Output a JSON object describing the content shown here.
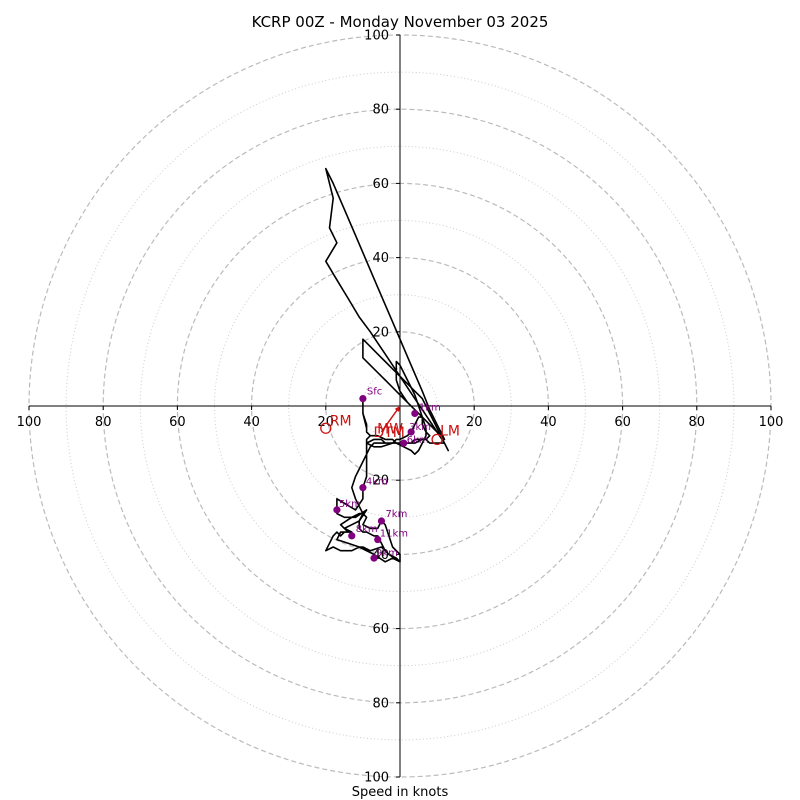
{
  "chart_data": {
    "type": "hodograph",
    "title": "KCRP 00Z - Monday November 03 2025",
    "xlabel": "Speed in knots",
    "max_speed": 100,
    "dashed_rings": [
      20,
      40,
      60,
      80,
      100
    ],
    "dotted_rings": [
      10,
      30,
      50,
      70,
      90
    ],
    "x_tick_labels": [
      "100",
      "80",
      "60",
      "40",
      "20",
      "20",
      "40",
      "60",
      "80",
      "100"
    ],
    "x_tick_values": [
      -100,
      -80,
      -60,
      -40,
      -20,
      20,
      40,
      60,
      80,
      100
    ],
    "y_tick_labels": [
      "100",
      "80",
      "60",
      "40",
      "20",
      "20",
      "40",
      "60",
      "80",
      "100"
    ],
    "y_tick_values": [
      100,
      80,
      60,
      40,
      20,
      -20,
      -40,
      -60,
      -80,
      -100
    ],
    "colors": {
      "hodograph": "#000000",
      "height_markers": "#800080",
      "motion": "#cc1111",
      "dashed_ring": "#bbbbbb",
      "dotted_ring": "#cccccc",
      "axis": "#000000"
    },
    "hodograph_trace": [
      [
        -10,
        2
      ],
      [
        -10,
        -2
      ],
      [
        -9,
        -6
      ],
      [
        -9,
        -7
      ],
      [
        -8,
        -8
      ],
      [
        -9,
        -9
      ],
      [
        -9,
        -10
      ],
      [
        -7,
        -9
      ],
      [
        -5,
        -9
      ],
      [
        -4,
        -10
      ],
      [
        -2,
        -10
      ],
      [
        -1,
        -9
      ],
      [
        0,
        -9
      ],
      [
        2,
        -8
      ],
      [
        3,
        -7
      ],
      [
        4,
        -5
      ],
      [
        5,
        -3
      ],
      [
        6,
        -3
      ],
      [
        6,
        -5
      ],
      [
        7,
        -7
      ],
      [
        8,
        -8
      ],
      [
        7,
        -9
      ],
      [
        6,
        -9
      ],
      [
        4,
        -10
      ],
      [
        3,
        -10
      ],
      [
        1,
        -10
      ],
      [
        -2,
        -10
      ],
      [
        -5,
        -11
      ],
      [
        -7,
        -11
      ],
      [
        -9,
        -10
      ],
      [
        -9,
        -14
      ],
      [
        -9,
        -19
      ],
      [
        -10,
        -22
      ],
      [
        -10,
        -25
      ],
      [
        -12,
        -28
      ],
      [
        -17,
        -25
      ],
      [
        -17,
        -27
      ],
      [
        -17,
        -29
      ],
      [
        -15,
        -30
      ],
      [
        -12,
        -30
      ],
      [
        -9,
        -28
      ],
      [
        -11,
        -31
      ],
      [
        -13,
        -32
      ],
      [
        -15,
        -33
      ],
      [
        -13,
        -34
      ],
      [
        -16,
        -34
      ],
      [
        -17,
        -36
      ],
      [
        -14,
        -37
      ],
      [
        -11,
        -38
      ],
      [
        -7,
        -40
      ],
      [
        -4,
        -42
      ],
      [
        -2,
        -41
      ],
      [
        0,
        -42
      ],
      [
        -3,
        -40
      ],
      [
        -5,
        -38
      ],
      [
        -8,
        -39
      ],
      [
        -10,
        -38
      ],
      [
        -11,
        -38
      ],
      [
        -13,
        -39
      ],
      [
        -14,
        -39
      ],
      [
        -15,
        -39
      ],
      [
        -16,
        -39
      ],
      [
        -18,
        -38
      ],
      [
        -20,
        -39
      ],
      [
        -19,
        -37
      ],
      [
        -18,
        -35
      ],
      [
        -17,
        -34
      ],
      [
        -16,
        -35
      ],
      [
        -15,
        -34
      ],
      [
        -14,
        -34
      ],
      [
        -15,
        -33
      ],
      [
        -16,
        -32
      ],
      [
        -13,
        -30
      ],
      [
        -11,
        -29
      ],
      [
        -10,
        -29
      ],
      [
        -9,
        -30
      ],
      [
        -10,
        -32
      ],
      [
        -8,
        -33
      ],
      [
        -6,
        -33
      ],
      [
        -5,
        -31
      ],
      [
        -4,
        -32
      ],
      [
        -3,
        -35
      ],
      [
        -2,
        -38
      ],
      [
        -1,
        -39
      ],
      [
        0,
        -40
      ],
      [
        0,
        -42
      ],
      [
        -1,
        -41
      ],
      [
        -3,
        -40
      ],
      [
        -4,
        -39
      ],
      [
        -5,
        -37
      ],
      [
        -6,
        -35
      ],
      [
        -7,
        -35
      ],
      [
        -9,
        -34
      ],
      [
        -10,
        -34
      ],
      [
        -11,
        -33
      ],
      [
        -11,
        -31
      ],
      [
        -10,
        -29
      ],
      [
        -11,
        -27
      ],
      [
        -12,
        -25
      ],
      [
        -13,
        -22
      ],
      [
        -12,
        -19
      ],
      [
        -11,
        -17
      ],
      [
        -10,
        -15
      ],
      [
        -9,
        -13
      ],
      [
        -8,
        -11
      ],
      [
        -7,
        -10
      ],
      [
        -5,
        -10
      ],
      [
        -3,
        -10
      ],
      [
        -1,
        -10
      ],
      [
        1,
        -10
      ],
      [
        3,
        -10
      ],
      [
        4,
        -9
      ],
      [
        6,
        -9
      ],
      [
        7,
        -9
      ],
      [
        8,
        -10
      ],
      [
        9,
        -10
      ],
      [
        10,
        -10
      ],
      [
        11,
        -10
      ],
      [
        12,
        -10
      ],
      [
        11,
        -8
      ],
      [
        10,
        -7
      ],
      [
        8,
        -5
      ],
      [
        6,
        -3
      ],
      [
        4,
        -1
      ],
      [
        2,
        1
      ],
      [
        0,
        3
      ],
      [
        -2,
        5
      ],
      [
        -4,
        7
      ],
      [
        -6,
        9
      ],
      [
        -8,
        11
      ],
      [
        -10,
        13
      ],
      [
        -10,
        18
      ],
      [
        -8,
        16
      ],
      [
        -6,
        14
      ],
      [
        -4,
        12
      ],
      [
        -2,
        10
      ],
      [
        0,
        8
      ],
      [
        2,
        6
      ],
      [
        4,
        4
      ],
      [
        6,
        2
      ],
      [
        7,
        0
      ],
      [
        8,
        -2
      ],
      [
        9,
        -4
      ],
      [
        10,
        -6
      ],
      [
        11,
        -8
      ],
      [
        12,
        -10
      ],
      [
        13,
        -12
      ],
      [
        12,
        -10
      ],
      [
        10,
        -7
      ],
      [
        8,
        -4
      ],
      [
        6,
        -1
      ],
      [
        4,
        2
      ],
      [
        2,
        5
      ],
      [
        0,
        8
      ],
      [
        -2,
        11
      ],
      [
        -4,
        14
      ],
      [
        -6,
        17
      ],
      [
        -8,
        20
      ],
      [
        -11,
        24
      ],
      [
        -14,
        29
      ],
      [
        -17,
        34
      ],
      [
        -20,
        39
      ],
      [
        -17,
        44
      ],
      [
        -19,
        48
      ],
      [
        -18,
        56
      ],
      [
        -20,
        64
      ],
      [
        -18,
        60
      ],
      [
        -15,
        53
      ],
      [
        -12,
        46
      ],
      [
        -9,
        39
      ],
      [
        -6,
        32
      ],
      [
        -3,
        25
      ],
      [
        0,
        18
      ],
      [
        3,
        11
      ],
      [
        6,
        4
      ],
      [
        8,
        -1
      ],
      [
        10,
        -5
      ],
      [
        12,
        -9
      ],
      [
        10,
        -7
      ],
      [
        8,
        -5
      ],
      [
        6,
        -3
      ],
      [
        4,
        -1
      ],
      [
        2,
        1
      ],
      [
        0,
        4
      ],
      [
        -1,
        7
      ],
      [
        -1,
        10
      ],
      [
        -1,
        12
      ],
      [
        0,
        11
      ],
      [
        1,
        9
      ],
      [
        2,
        7
      ],
      [
        3,
        5
      ],
      [
        4,
        3
      ],
      [
        5,
        0
      ],
      [
        6,
        -3
      ],
      [
        7,
        -6
      ],
      [
        7,
        -8
      ],
      [
        6,
        -10
      ],
      [
        5,
        -12
      ],
      [
        4,
        -13
      ],
      [
        3,
        -12
      ],
      [
        1,
        -11
      ],
      [
        -1,
        -10
      ],
      [
        -2,
        -9
      ],
      [
        -4,
        -9
      ],
      [
        -6,
        -8
      ],
      [
        -8,
        -8
      ],
      [
        -9,
        -7
      ],
      [
        -9,
        -5
      ],
      [
        -10,
        -2
      ],
      [
        -10,
        2
      ]
    ],
    "height_markers": [
      {
        "label": "Sfc",
        "u": -10,
        "v": 2
      },
      {
        "label": "1km",
        "u": 4,
        "v": -2
      },
      {
        "label": "3km",
        "u": 3,
        "v": -7
      },
      {
        "label": "4km",
        "u": -10,
        "v": -22
      },
      {
        "label": "5km",
        "u": -17,
        "v": -28
      },
      {
        "label": "7km",
        "u": -5,
        "v": -31
      },
      {
        "label": "8km",
        "u": -13,
        "v": -35
      },
      {
        "label": "11km",
        "u": -6,
        "v": -36
      },
      {
        "label": "9km",
        "u": -7,
        "v": -41
      },
      {
        "label": "6km",
        "u": 1,
        "v": -10
      }
    ],
    "storm_motion": {
      "rm": {
        "label": "RM",
        "u": -20,
        "v": -6
      },
      "lm": {
        "label": "LM",
        "u": 10,
        "v": -9
      },
      "mw": {
        "label": "MW",
        "u": -4,
        "v": -6
      },
      "dtm": {
        "label": "DTM",
        "u": -5,
        "v": -7
      },
      "shear_vector": {
        "from": [
          -5,
          -7
        ],
        "to": [
          0,
          0
        ]
      }
    }
  }
}
